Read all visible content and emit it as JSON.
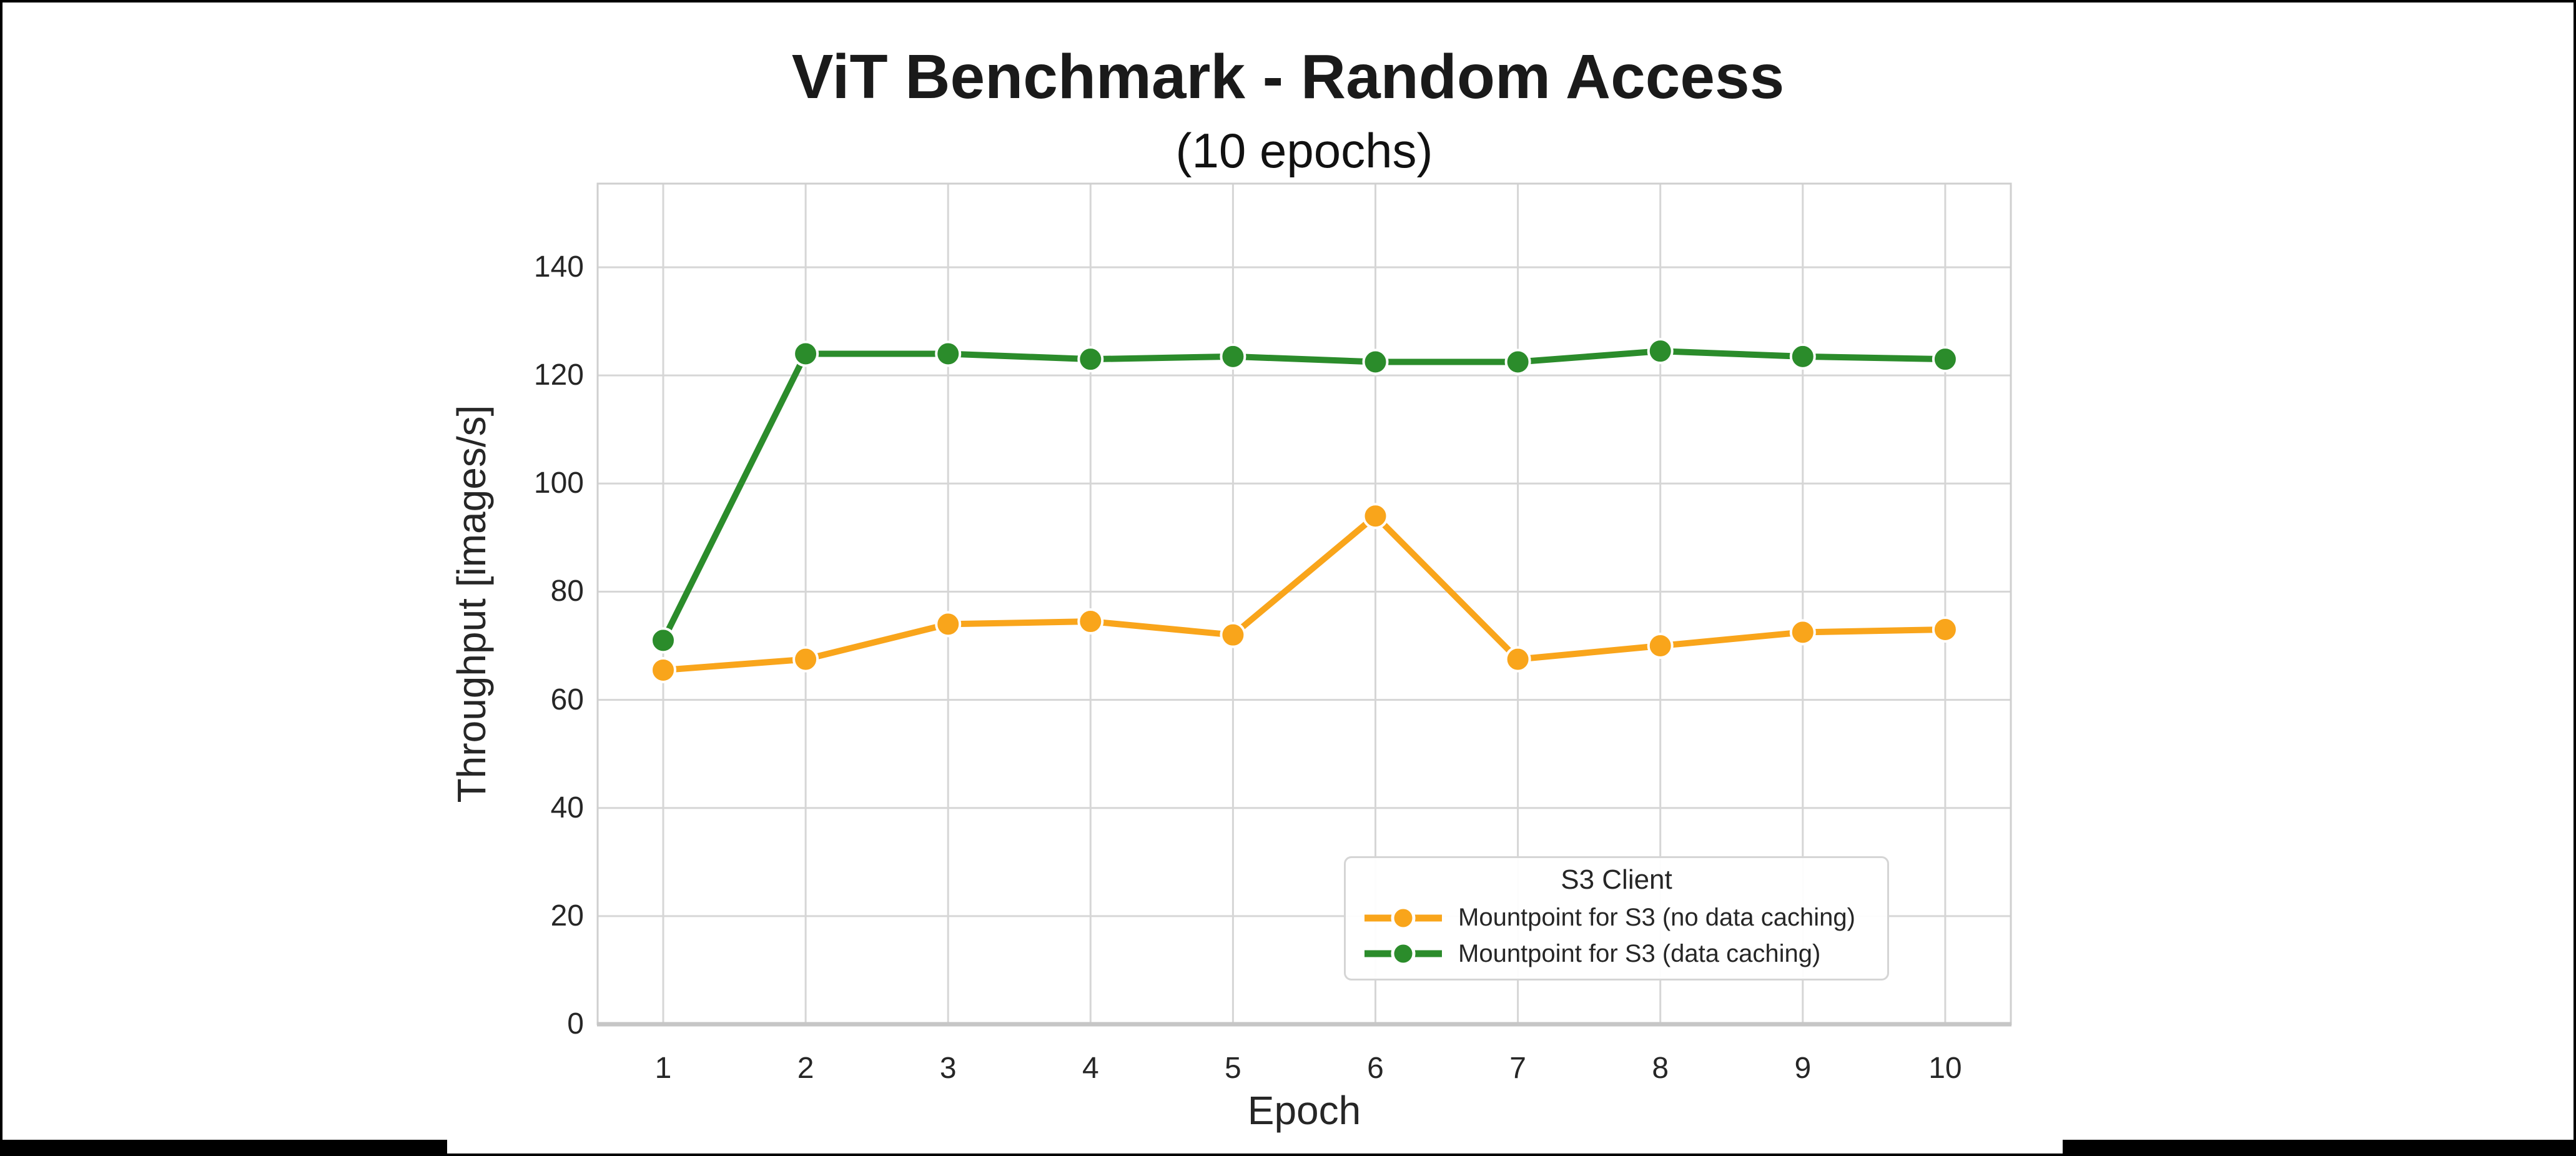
{
  "figure": {
    "colors": {
      "grid": "#d6d6d6",
      "spine": "#cfcfcf",
      "axis_line": "#c6c6c6",
      "text": "#262626",
      "marker_edge": "#ffffff",
      "frame_border": "#000000"
    }
  },
  "chart_data": {
    "type": "line",
    "title": "ViT Benchmark - Random Access",
    "subtitle": "(10 epochs)",
    "xlabel": "Epoch",
    "ylabel": "Throughput [images/s]",
    "x": [
      1,
      2,
      3,
      4,
      5,
      6,
      7,
      8,
      9,
      10
    ],
    "xtick_labels": [
      "1",
      "2",
      "3",
      "4",
      "5",
      "6",
      "7",
      "8",
      "9",
      "10"
    ],
    "yticks": [
      0,
      20,
      40,
      60,
      80,
      100,
      120,
      140
    ],
    "ylim": [
      0,
      155
    ],
    "grid": true,
    "legend": {
      "title": "S3 Client",
      "position": "lower-right-inside"
    },
    "series": [
      {
        "name": "Mountpoint for S3 (no data caching)",
        "color": "#F9A51B",
        "marker": "circle",
        "values": [
          65.5,
          67.5,
          74,
          74.5,
          72,
          94,
          67.5,
          70,
          72.5,
          73
        ]
      },
      {
        "name": "Mountpoint for S3 (data caching)",
        "color": "#2B8C2B",
        "marker": "circle",
        "values": [
          71,
          124,
          124,
          123,
          123.5,
          122.5,
          122.5,
          124.5,
          123.5,
          123
        ]
      }
    ]
  }
}
